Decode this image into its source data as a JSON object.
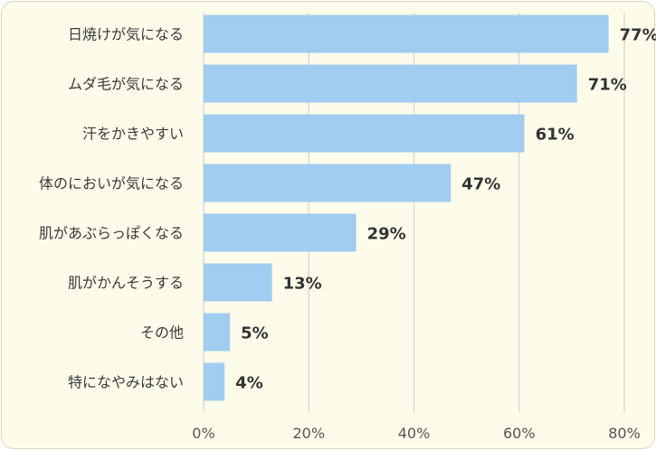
{
  "chart_data": {
    "type": "bar",
    "orientation": "horizontal",
    "categories": [
      "日焼けが気になる",
      "ムダ毛が気になる",
      "汗をかきやすい",
      "体のにおいが気になる",
      "肌があぶらっぽくなる",
      "肌がかんそうする",
      "その他",
      "特になやみはない"
    ],
    "values": [
      77,
      71,
      61,
      47,
      29,
      13,
      5,
      4
    ],
    "value_labels": [
      "77%",
      "71%",
      "61%",
      "47%",
      "29%",
      "13%",
      "5%",
      "4%"
    ],
    "xlim": [
      0,
      80
    ],
    "xticks": [
      "0%",
      "20%",
      "40%",
      "60%",
      "80%"
    ],
    "grid": "vertical",
    "bar_color": "#a0cdf0",
    "grid_color": "#d6d6d6",
    "background": "#fdfbea"
  }
}
